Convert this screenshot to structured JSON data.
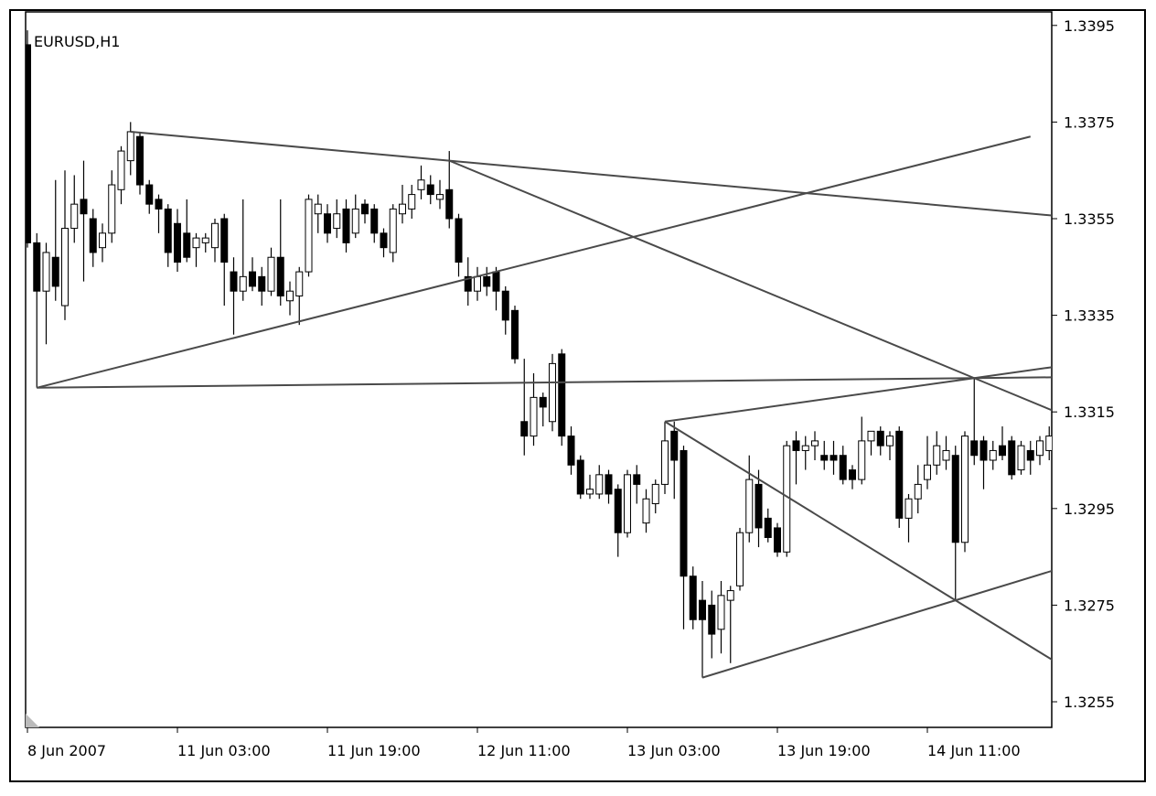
{
  "chart_data": {
    "type": "candlestick",
    "title": "EURUSD,H1",
    "categories": [
      "8 Jun 2007",
      null,
      null,
      null,
      null,
      null,
      null,
      null,
      null,
      null,
      null,
      null,
      null,
      null,
      null,
      null,
      "11 Jun 03:00",
      null,
      null,
      null,
      null,
      null,
      null,
      null,
      null,
      null,
      null,
      null,
      null,
      null,
      null,
      null,
      "11 Jun 19:00",
      null,
      null,
      null,
      null,
      null,
      null,
      null,
      null,
      null,
      null,
      null,
      null,
      null,
      null,
      null,
      "12 Jun 11:00",
      null,
      null,
      null,
      null,
      null,
      null,
      null,
      null,
      null,
      null,
      null,
      null,
      null,
      null,
      null,
      "13 Jun 03:00",
      null,
      null,
      null,
      null,
      null,
      null,
      null,
      null,
      null,
      null,
      null,
      null,
      null,
      null,
      null,
      "13 Jun 19:00",
      null,
      null,
      null,
      null,
      null,
      null,
      null,
      null,
      null,
      null,
      null,
      null,
      null,
      null,
      null,
      "14 Jun 11:00",
      null,
      null,
      null,
      null,
      null,
      null,
      null,
      null,
      null,
      null,
      null,
      null,
      null
    ],
    "open": [
      1.3391,
      1.335,
      1.334,
      1.3347,
      1.3337,
      1.3353,
      1.3359,
      1.3355,
      1.3349,
      1.3352,
      1.3361,
      1.3367,
      1.3372,
      1.3362,
      1.3359,
      1.3357,
      1.3354,
      1.3352,
      1.3349,
      1.335,
      1.3349,
      1.3355,
      1.3344,
      1.334,
      1.3344,
      1.3343,
      1.334,
      1.3347,
      1.3338,
      1.3339,
      1.3344,
      1.3356,
      1.3356,
      1.3353,
      1.3357,
      1.3352,
      1.3358,
      1.3357,
      1.3352,
      1.3348,
      1.3356,
      1.3357,
      1.3361,
      1.3362,
      1.3359,
      1.3361,
      1.3355,
      1.3343,
      1.334,
      1.3343,
      1.3344,
      1.334,
      1.3336,
      1.3313,
      1.331,
      1.3318,
      1.3313,
      1.3327,
      1.331,
      1.3305,
      1.3298,
      1.3298,
      1.3302,
      1.3299,
      1.329,
      1.3302,
      1.3292,
      1.3296,
      1.33,
      1.3311,
      1.3307,
      1.3281,
      1.3276,
      1.3275,
      1.327,
      1.3276,
      1.3279,
      1.329,
      1.33,
      1.3293,
      1.3291,
      1.3286,
      1.3309,
      1.3307,
      1.3308,
      1.3306,
      1.3306,
      1.3306,
      1.3303,
      1.3301,
      1.3309,
      1.3311,
      1.3308,
      1.3311,
      1.3293,
      1.3297,
      1.3301,
      1.3304,
      1.3305,
      1.3306,
      1.3288,
      1.3309,
      1.3309,
      1.3305,
      1.3308,
      1.3309,
      1.3303,
      1.3307,
      1.3306,
      1.3307
    ],
    "high": [
      1.3394,
      1.3352,
      1.335,
      1.3363,
      1.3365,
      1.3364,
      1.3367,
      1.3357,
      1.3354,
      1.3365,
      1.337,
      1.3375,
      1.3373,
      1.3363,
      1.336,
      1.3358,
      1.3357,
      1.3359,
      1.3352,
      1.3352,
      1.3355,
      1.3356,
      1.3347,
      1.3359,
      1.3347,
      1.3345,
      1.3349,
      1.3359,
      1.3342,
      1.3345,
      1.336,
      1.336,
      1.3358,
      1.3359,
      1.3359,
      1.336,
      1.3359,
      1.3358,
      1.3353,
      1.3358,
      1.3362,
      1.3362,
      1.3366,
      1.3364,
      1.3363,
      1.3369,
      1.3356,
      1.3347,
      1.3345,
      1.3345,
      1.3345,
      1.3341,
      1.3337,
      1.3326,
      1.3323,
      1.3319,
      1.3327,
      1.3328,
      1.3312,
      1.3306,
      1.3302,
      1.3304,
      1.3303,
      1.33,
      1.3303,
      1.3304,
      1.3299,
      1.3301,
      1.3313,
      1.3313,
      1.3308,
      1.3283,
      1.328,
      1.3278,
      1.328,
      1.3279,
      1.3291,
      1.3306,
      1.3303,
      1.3295,
      1.3292,
      1.3309,
      1.3311,
      1.331,
      1.3311,
      1.3309,
      1.3309,
      1.3308,
      1.3304,
      1.3314,
      1.3311,
      1.3312,
      1.3311,
      1.3312,
      1.3298,
      1.3304,
      1.331,
      1.3311,
      1.331,
      1.3308,
      1.3311,
      1.3322,
      1.331,
      1.3309,
      1.3312,
      1.331,
      1.3309,
      1.3309,
      1.331,
      1.3312
    ],
    "low": [
      1.3349,
      1.332,
      1.3329,
      1.3338,
      1.3334,
      1.335,
      1.3342,
      1.3345,
      1.3346,
      1.335,
      1.3358,
      1.3364,
      1.336,
      1.3356,
      1.3352,
      1.3345,
      1.3344,
      1.3346,
      1.3345,
      1.3348,
      1.3346,
      1.3337,
      1.3331,
      1.3338,
      1.334,
      1.3337,
      1.3339,
      1.3337,
      1.3335,
      1.3333,
      1.3343,
      1.3352,
      1.335,
      1.3351,
      1.3348,
      1.3351,
      1.3354,
      1.335,
      1.3347,
      1.3346,
      1.3354,
      1.3355,
      1.3359,
      1.3358,
      1.3357,
      1.3353,
      1.3343,
      1.3337,
      1.3338,
      1.3339,
      1.3336,
      1.3331,
      1.3325,
      1.3306,
      1.3308,
      1.3312,
      1.3311,
      1.3308,
      1.3302,
      1.3297,
      1.3297,
      1.3297,
      1.3296,
      1.3285,
      1.3289,
      1.3296,
      1.329,
      1.3294,
      1.3298,
      1.3297,
      1.327,
      1.327,
      1.326,
      1.3264,
      1.3265,
      1.3263,
      1.3278,
      1.3288,
      1.3287,
      1.3288,
      1.3285,
      1.3285,
      1.33,
      1.3303,
      1.3305,
      1.3303,
      1.3302,
      1.33,
      1.3299,
      1.33,
      1.3306,
      1.3306,
      1.3305,
      1.3291,
      1.3288,
      1.3294,
      1.3299,
      1.3302,
      1.3303,
      1.3276,
      1.3286,
      1.3304,
      1.3299,
      1.3303,
      1.3305,
      1.3301,
      1.3302,
      1.3302,
      1.3304,
      1.3305
    ],
    "close": [
      1.335,
      1.334,
      1.3348,
      1.3341,
      1.3353,
      1.3358,
      1.3356,
      1.3348,
      1.3352,
      1.3362,
      1.3369,
      1.3373,
      1.3362,
      1.3358,
      1.3357,
      1.3348,
      1.3346,
      1.3347,
      1.3351,
      1.3351,
      1.3354,
      1.3346,
      1.334,
      1.3343,
      1.3341,
      1.334,
      1.3347,
      1.3339,
      1.334,
      1.3344,
      1.3359,
      1.3358,
      1.3352,
      1.3356,
      1.335,
      1.3357,
      1.3356,
      1.3352,
      1.3349,
      1.3357,
      1.3358,
      1.336,
      1.3363,
      1.336,
      1.336,
      1.3355,
      1.3346,
      1.334,
      1.3343,
      1.3341,
      1.334,
      1.3334,
      1.3326,
      1.331,
      1.3318,
      1.3316,
      1.3325,
      1.331,
      1.3304,
      1.3298,
      1.3299,
      1.3302,
      1.3298,
      1.329,
      1.3302,
      1.33,
      1.3297,
      1.33,
      1.3309,
      1.3305,
      1.3281,
      1.3272,
      1.3272,
      1.3269,
      1.3277,
      1.3278,
      1.329,
      1.3301,
      1.3291,
      1.3289,
      1.3286,
      1.3308,
      1.3307,
      1.3308,
      1.3309,
      1.3305,
      1.3305,
      1.3301,
      1.3301,
      1.3309,
      1.3311,
      1.3308,
      1.331,
      1.3293,
      1.3297,
      1.33,
      1.3304,
      1.3308,
      1.3307,
      1.3288,
      1.331,
      1.3306,
      1.3305,
      1.3307,
      1.3306,
      1.3302,
      1.3308,
      1.3305,
      1.3309,
      1.331
    ],
    "up_color": "#ffffff",
    "down_color": "#000000",
    "line_color": "#4a4a4a",
    "ylim": [
      1.32497,
      1.33978
    ],
    "yticks": [
      1.3255,
      1.3275,
      1.3295,
      1.3315,
      1.3335,
      1.3355,
      1.3375,
      1.3395
    ],
    "trendlines": [
      {
        "x": [
          11,
          45
        ],
        "y": [
          1.3373,
          1.3367
        ],
        "ray": true
      },
      {
        "x": [
          45,
          101
        ],
        "y": [
          1.3367,
          1.3322
        ],
        "ray": true
      },
      {
        "x": [
          1,
          107
        ],
        "y": [
          1.332,
          1.3372
        ],
        "ray": false
      },
      {
        "x": [
          1,
          101
        ],
        "y": [
          1.332,
          1.3322
        ],
        "ray": true
      },
      {
        "x": [
          68,
          101
        ],
        "y": [
          1.3313,
          1.3322
        ],
        "ray": true
      },
      {
        "x": [
          68,
          99
        ],
        "y": [
          1.3313,
          1.3276
        ],
        "ray": true
      },
      {
        "x": [
          72,
          99
        ],
        "y": [
          1.326,
          1.3276
        ],
        "ray": true
      }
    ]
  }
}
